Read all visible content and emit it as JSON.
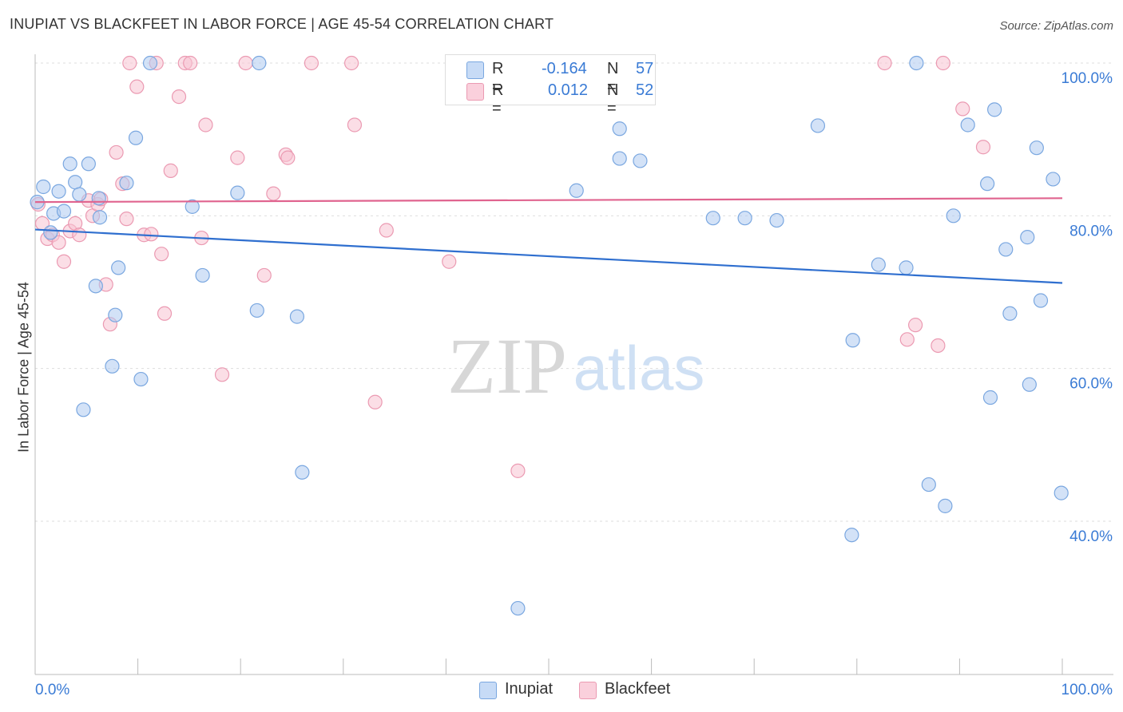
{
  "title": "INUPIAT VS BLACKFEET IN LABOR FORCE | AGE 45-54 CORRELATION CHART",
  "source": "Source: ZipAtlas.com",
  "watermark": {
    "zip": "ZIP",
    "atlas": "atlas"
  },
  "legend": {
    "rows": [
      {
        "r_label": "R =",
        "r_value": "-0.164",
        "n_label": "N =",
        "n_value": "57",
        "color": "#aecbf0"
      },
      {
        "r_label": "R =",
        "r_value": "0.012",
        "n_label": "N =",
        "n_value": "52",
        "color": "#f7b9cb"
      }
    ]
  },
  "bottom_legend": [
    {
      "label": "Inupiat",
      "color": "#aecbf0"
    },
    {
      "label": "Blackfeet",
      "color": "#f7b9cb"
    }
  ],
  "colors": {
    "inupiat_fill": "#aecbf0",
    "inupiat_stroke": "#7aa7e0",
    "inupiat_line": "#2f6fcf",
    "blackfeet_fill": "#f7c3d2",
    "blackfeet_stroke": "#eb9ab2",
    "blackfeet_line": "#e0648f",
    "axis_text": "#3a7bd5",
    "grid": "#dddddd"
  },
  "chart_data": {
    "type": "scatter",
    "title": "INUPIAT VS BLACKFEET IN LABOR FORCE | AGE 45-54 CORRELATION CHART",
    "xlabel": "",
    "ylabel": "In Labor Force | Age 45-54",
    "xlim": [
      0,
      100
    ],
    "ylim": [
      19,
      102
    ],
    "x_tick_labels": [
      "0.0%",
      "100.0%"
    ],
    "y_ticks": [
      40,
      60,
      80,
      100
    ],
    "y_tick_labels": [
      "40.0%",
      "60.0%",
      "80.0%",
      "100.0%"
    ],
    "grid": true,
    "legend_placement": "top-center",
    "series": [
      {
        "name": "Inupiat",
        "trend": {
          "x": [
            0,
            100
          ],
          "y": [
            78.2,
            71.2
          ]
        },
        "points": [
          [
            0.2,
            81.8
          ],
          [
            0.8,
            83.8
          ],
          [
            1.5,
            77.8
          ],
          [
            1.8,
            80.3
          ],
          [
            2.3,
            83.2
          ],
          [
            2.8,
            80.6
          ],
          [
            3.4,
            86.8
          ],
          [
            3.9,
            84.4
          ],
          [
            4.3,
            82.8
          ],
          [
            4.7,
            54.6
          ],
          [
            5.2,
            86.8
          ],
          [
            5.9,
            70.8
          ],
          [
            6.3,
            79.8
          ],
          [
            6.2,
            82.3
          ],
          [
            7.5,
            60.3
          ],
          [
            7.8,
            67.0
          ],
          [
            8.1,
            73.2
          ],
          [
            8.9,
            84.3
          ],
          [
            9.8,
            90.2
          ],
          [
            10.3,
            58.6
          ],
          [
            11.2,
            100.0
          ],
          [
            15.3,
            81.2
          ],
          [
            16.3,
            72.2
          ],
          [
            19.7,
            83.0
          ],
          [
            21.8,
            100.0
          ],
          [
            21.6,
            67.6
          ],
          [
            25.5,
            66.8
          ],
          [
            26.0,
            46.4
          ],
          [
            47.0,
            28.6
          ],
          [
            52.7,
            83.3
          ],
          [
            56.9,
            91.4
          ],
          [
            56.9,
            87.5
          ],
          [
            58.9,
            87.2
          ],
          [
            66.0,
            79.7
          ],
          [
            69.1,
            79.7
          ],
          [
            72.2,
            79.4
          ],
          [
            76.2,
            91.8
          ],
          [
            79.6,
            63.7
          ],
          [
            79.5,
            38.2
          ],
          [
            82.1,
            73.6
          ],
          [
            85.8,
            100.0
          ],
          [
            84.8,
            73.2
          ],
          [
            87.0,
            44.8
          ],
          [
            88.6,
            42.0
          ],
          [
            89.4,
            80.0
          ],
          [
            90.8,
            91.9
          ],
          [
            92.7,
            84.2
          ],
          [
            93.0,
            56.2
          ],
          [
            93.4,
            93.9
          ],
          [
            94.5,
            75.6
          ],
          [
            94.9,
            67.2
          ],
          [
            96.6,
            77.2
          ],
          [
            96.8,
            57.9
          ],
          [
            97.5,
            88.9
          ],
          [
            97.9,
            68.9
          ],
          [
            99.1,
            84.8
          ],
          [
            99.9,
            43.7
          ]
        ]
      },
      {
        "name": "Blackfeet",
        "trend": {
          "x": [
            0,
            100
          ],
          "y": [
            81.8,
            82.3
          ]
        },
        "points": [
          [
            0.3,
            81.5
          ],
          [
            0.7,
            79.0
          ],
          [
            1.2,
            77.0
          ],
          [
            1.7,
            77.5
          ],
          [
            2.3,
            76.5
          ],
          [
            2.8,
            74.0
          ],
          [
            3.4,
            78.0
          ],
          [
            3.9,
            79.0
          ],
          [
            4.3,
            77.5
          ],
          [
            5.2,
            82.0
          ],
          [
            5.6,
            80.0
          ],
          [
            6.1,
            81.5
          ],
          [
            6.4,
            82.2
          ],
          [
            6.9,
            71.0
          ],
          [
            7.3,
            65.8
          ],
          [
            7.9,
            88.3
          ],
          [
            8.5,
            84.2
          ],
          [
            8.9,
            79.6
          ],
          [
            9.2,
            100.0
          ],
          [
            9.9,
            96.9
          ],
          [
            10.6,
            77.5
          ],
          [
            11.3,
            77.6
          ],
          [
            11.8,
            100.0
          ],
          [
            12.3,
            75.0
          ],
          [
            12.6,
            67.2
          ],
          [
            13.2,
            85.9
          ],
          [
            14.0,
            95.6
          ],
          [
            14.6,
            100.0
          ],
          [
            15.1,
            100.0
          ],
          [
            16.2,
            77.1
          ],
          [
            16.6,
            91.9
          ],
          [
            18.2,
            59.2
          ],
          [
            19.7,
            87.6
          ],
          [
            20.5,
            100.0
          ],
          [
            22.3,
            72.2
          ],
          [
            23.2,
            82.9
          ],
          [
            24.4,
            88.0
          ],
          [
            24.6,
            87.6
          ],
          [
            26.9,
            100.0
          ],
          [
            30.8,
            100.0
          ],
          [
            31.1,
            91.9
          ],
          [
            33.1,
            55.6
          ],
          [
            34.2,
            78.1
          ],
          [
            40.3,
            74.0
          ],
          [
            47.0,
            46.6
          ],
          [
            82.7,
            100.0
          ],
          [
            84.9,
            63.8
          ],
          [
            85.7,
            65.7
          ],
          [
            87.9,
            63.0
          ],
          [
            88.4,
            100.0
          ],
          [
            90.3,
            94.0
          ],
          [
            92.3,
            89.0
          ]
        ]
      }
    ]
  }
}
